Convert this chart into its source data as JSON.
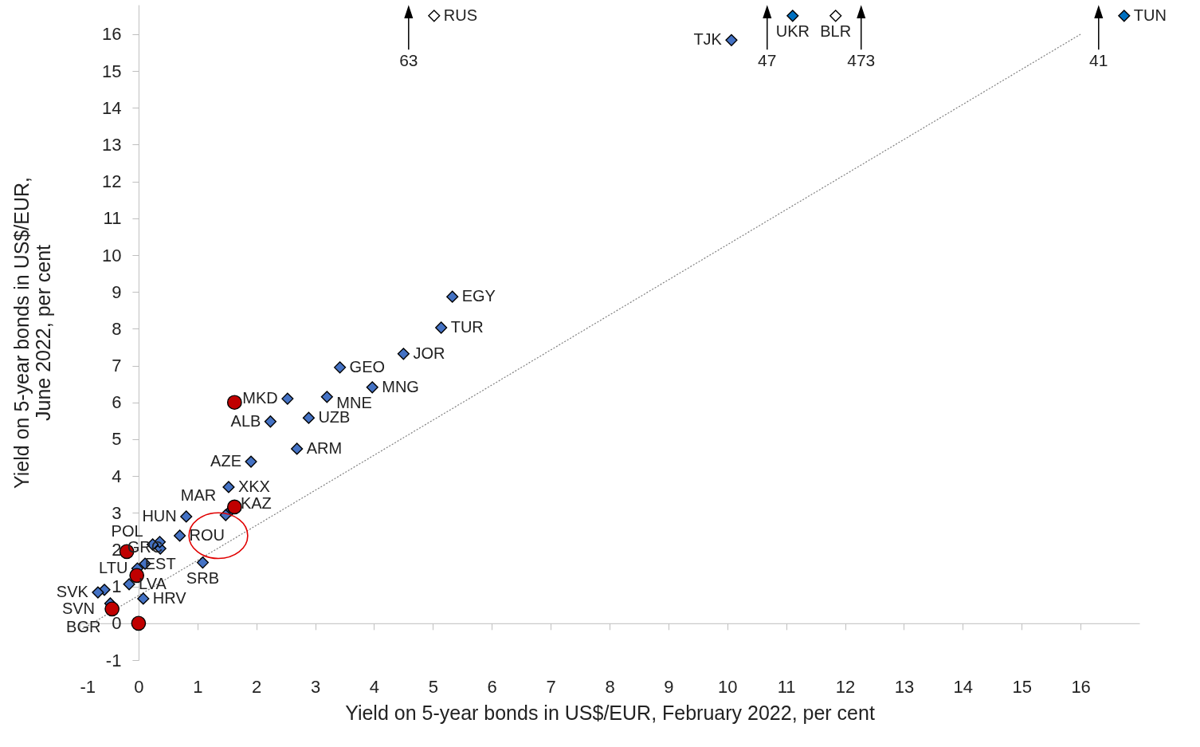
{
  "chart_data": {
    "type": "scatter",
    "xlabel": "Yield on 5-year bonds in US$/EUR, February 2022, per cent",
    "ylabel": "Yield on 5-year bonds in US$/EUR, June 2022, per cent",
    "xlim": [
      -1,
      17
    ],
    "ylim": [
      -1,
      16.8
    ],
    "xticks": [
      -1,
      0,
      1,
      2,
      3,
      4,
      5,
      6,
      7,
      8,
      9,
      10,
      11,
      12,
      13,
      14,
      15,
      16
    ],
    "yticks": [
      -1,
      0,
      1,
      2,
      3,
      4,
      5,
      6,
      7,
      8,
      9,
      10,
      11,
      12,
      13,
      14,
      15,
      16
    ],
    "annotations": [
      "63",
      "47",
      "473",
      "41"
    ],
    "series": [
      {
        "type": "line",
        "color": "#808080",
        "line_style": "dotted",
        "x": [
          -1,
          16
        ],
        "values": [
          -0.2,
          16
        ]
      },
      {
        "color": "#4472c4",
        "marker": "diamond",
        "x": [
          5.33,
          5.14,
          4.5,
          3.42,
          3.97,
          3.2,
          2.53,
          2.89,
          2.24,
          2.69,
          1.91,
          1.53,
          1.57,
          1.48,
          0.81,
          0.7,
          1.09,
          0.37,
          0.36,
          0.24,
          0.11,
          -0.02,
          0.08,
          -0.16,
          -0.58,
          -0.69,
          -0.48,
          10.07
        ],
        "values": [
          8.87,
          8.03,
          7.32,
          6.95,
          6.41,
          6.15,
          6.1,
          5.58,
          5.48,
          4.74,
          4.39,
          3.7,
          3.07,
          2.94,
          2.9,
          2.38,
          1.65,
          2.03,
          2.21,
          2.14,
          1.62,
          1.49,
          0.67,
          1.06,
          0.91,
          0.84,
          0.54,
          15.84
        ],
        "value_labels": [
          "EGY",
          "TUR",
          "JOR",
          "GEO",
          "MNG",
          "MNE",
          "MKD",
          "UZB",
          "ALB",
          "ARM",
          "AZE",
          "XKX",
          "KAZ",
          "MAR",
          "HUN",
          "ROU",
          "SRB",
          "EST",
          null,
          "POL",
          "GRC",
          "LTU",
          "HRV",
          "LVA",
          "SVN",
          "SVK",
          "BGR",
          "TJK"
        ]
      },
      {
        "color": "#0070c0",
        "marker": "diamond",
        "x": [
          11.11,
          16.74
        ],
        "values": [
          16.5,
          16.5
        ],
        "value_labels": [
          "UKR",
          "TUN"
        ]
      },
      {
        "color": "#ffffff",
        "marker": "diamond",
        "x": [
          5.02,
          11.84
        ],
        "values": [
          16.5,
          16.5
        ],
        "value_labels": [
          "RUS",
          "BLR"
        ]
      },
      {
        "color": "#c00000",
        "marker": "circle",
        "x": [
          1.63,
          1.63,
          -0.2,
          -0.03,
          -0.45,
          0
        ],
        "values": [
          6,
          3.16,
          1.95,
          1.3,
          0.39,
          0
        ]
      }
    ]
  }
}
